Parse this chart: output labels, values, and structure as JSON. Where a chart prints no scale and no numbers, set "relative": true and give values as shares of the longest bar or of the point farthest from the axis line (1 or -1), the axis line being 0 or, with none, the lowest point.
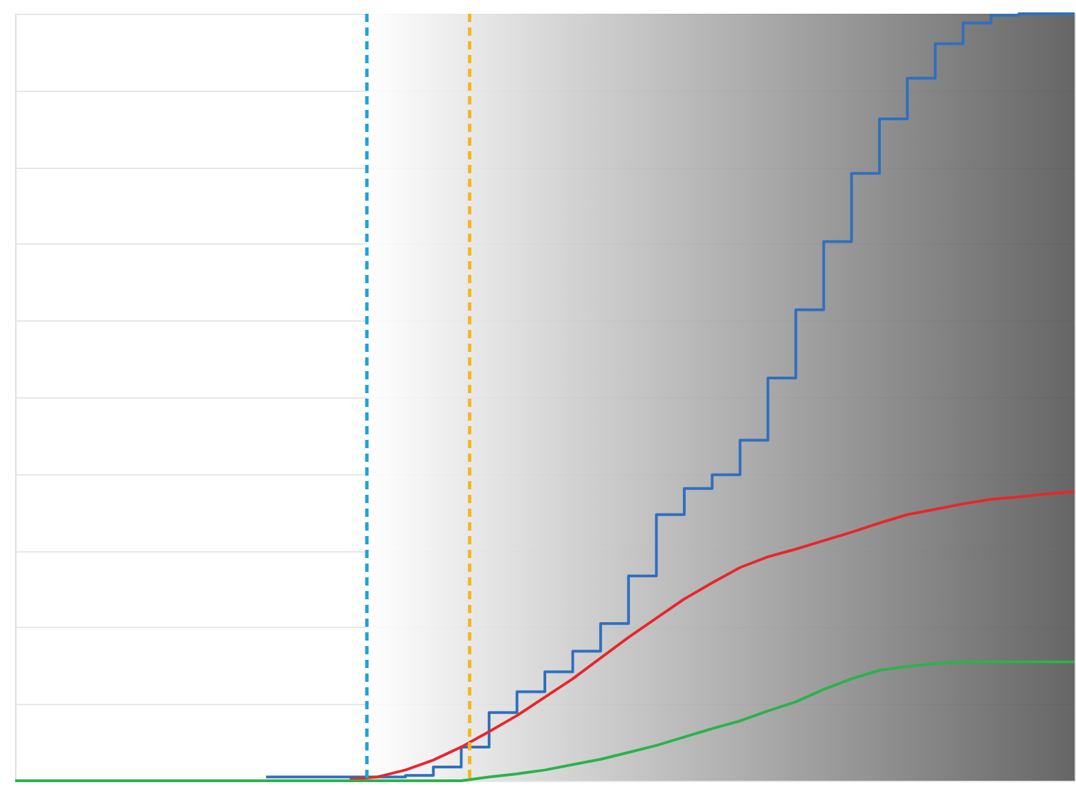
{
  "chart_data": {
    "type": "line",
    "relative": true,
    "grid": "y",
    "marker": "none",
    "categories": [
      null,
      null,
      null,
      null,
      null,
      null,
      null,
      null,
      null,
      null,
      null,
      null,
      null,
      null,
      null,
      null,
      null,
      null,
      null,
      null,
      null,
      null,
      null,
      null,
      null,
      null,
      null,
      null,
      null,
      null,
      null,
      null,
      null,
      null,
      null,
      null,
      null,
      null,
      null
    ],
    "series": [
      {
        "type": "step",
        "color": "#2f6fbf",
        "values": [
          null,
          null,
          null,
          null,
          null,
          null,
          null,
          null,
          null,
          0.005,
          0.005,
          0.005,
          0.005,
          0.005,
          0.007,
          0.018,
          0.044,
          0.089,
          0.116,
          0.142,
          0.169,
          0.205,
          0.267,
          0.347,
          0.381,
          0.399,
          0.444,
          0.525,
          0.614,
          0.703,
          0.792,
          0.863,
          0.916,
          0.961,
          0.988,
          0.998,
          1,
          1,
          1
        ]
      },
      {
        "color": "#e8262a",
        "values": [
          null,
          null,
          null,
          null,
          null,
          null,
          null,
          null,
          null,
          null,
          null,
          null,
          0.002,
          0.005,
          0.014,
          0.027,
          0.044,
          0.064,
          0.085,
          0.109,
          0.133,
          0.16,
          0.187,
          0.212,
          0.237,
          0.258,
          0.278,
          0.292,
          0.302,
          0.313,
          0.324,
          0.336,
          0.347,
          0.354,
          0.361,
          0.367,
          0.37,
          0.374,
          0.377
        ]
      },
      {
        "color": "#2bb24c",
        "values": [
          0,
          0,
          0,
          0,
          0,
          0,
          0,
          0,
          0,
          0,
          0,
          0,
          0,
          0,
          0,
          0,
          0,
          0.005,
          0.009,
          0.014,
          0.021,
          0.028,
          0.037,
          0.046,
          0.057,
          0.068,
          0.078,
          0.091,
          0.103,
          0.119,
          0.133,
          0.144,
          0.149,
          0.153,
          0.155,
          0.155,
          0.155,
          0.155,
          0.155
        ]
      }
    ]
  }
}
